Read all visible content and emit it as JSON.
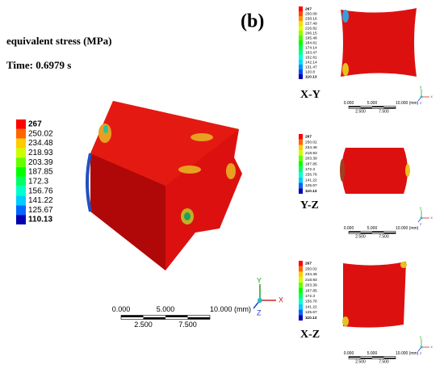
{
  "panel_label": "(b)",
  "main": {
    "title": "equivalent stress (MPa)",
    "time": "Time: 0.6979 s",
    "legend": [
      "267",
      "250.02",
      "234.48",
      "218.93",
      "203.39",
      "187.85",
      "172.3",
      "156.76",
      "141.22",
      "125.67",
      "110.13"
    ],
    "scale": {
      "top": [
        "0.000",
        "5.000",
        "10.000 (mm)"
      ],
      "bottom": [
        "2.500",
        "7.500"
      ]
    },
    "axes": [
      "Y",
      "Z",
      "X"
    ]
  },
  "views": [
    {
      "label": "X-Y",
      "legend": [
        "267",
        "250.08",
        "238.16",
        "227.49",
        "216.82",
        "206.15",
        "195.48",
        "184.81",
        "174.14",
        "163.47",
        "152.81",
        "142.14",
        "131.47",
        "120.8",
        "110.13"
      ],
      "scale": {
        "top": [
          "0.000",
          "5.000",
          "10.000 (mm)"
        ],
        "bottom": [
          "2.500",
          "7.500"
        ]
      },
      "axes": [
        "y",
        "x",
        "z"
      ]
    },
    {
      "label": "Y-Z",
      "legend": [
        "267",
        "250.02",
        "234.48",
        "218.93",
        "203.39",
        "187.85",
        "172.3",
        "156.76",
        "141.22",
        "125.67",
        "110.13"
      ],
      "scale": {
        "top": [
          "0.000",
          "5.000",
          "10.000 (mm)"
        ],
        "bottom": [
          "2.500",
          "7.500"
        ]
      },
      "axes": [
        "y",
        "x",
        "z"
      ]
    },
    {
      "label": "X-Z",
      "legend": [
        "267",
        "250.02",
        "234.48",
        "218.93",
        "203.39",
        "187.85",
        "172.3",
        "156.76",
        "141.22",
        "125.67",
        "110.13"
      ],
      "scale": {
        "top": [
          "0.000",
          "5.000",
          "10.000 (mm)"
        ],
        "bottom": [
          "2.500",
          "7.500"
        ]
      },
      "axes": [
        "y",
        "x",
        "z"
      ]
    }
  ]
}
